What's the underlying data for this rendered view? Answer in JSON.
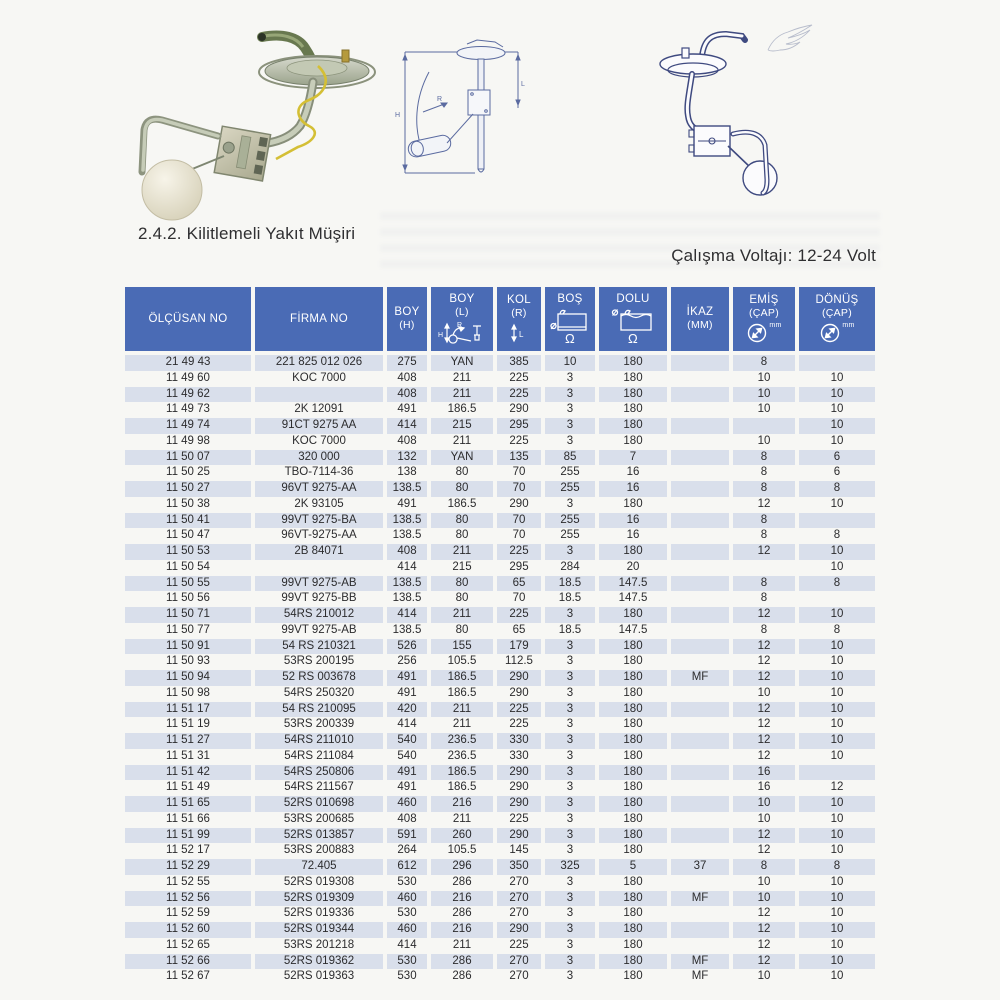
{
  "page": {
    "section_title": "2.4.2. Kilitlemeli Yakıt Müşiri",
    "voltage_note": "Çalışma Voltajı: 12-24 Volt"
  },
  "colors": {
    "header_bg": "#4a6bb5",
    "row_stripe": "#d9dfeb",
    "page_bg": "#f7f7f4",
    "drawing_ink": "#3f4a80"
  },
  "icon_letters": {
    "h": "H",
    "r": "R",
    "l": "L"
  },
  "figures": {
    "left": "locking-fuel-sender-photo",
    "middle": "fuel-sender-dimension-diagram",
    "right": "fuel-sender-line-drawing",
    "diagram_labels": {
      "height": "H",
      "radius": "R",
      "arm": "L"
    }
  },
  "table": {
    "headers": [
      {
        "label": "ÖLÇÜSAN NO"
      },
      {
        "label": "FİRMA NO"
      },
      {
        "label": "BOY",
        "sub": "(H)"
      },
      {
        "label": "BOY",
        "sub": "(L)",
        "icon": "boy-l-dimension-icon"
      },
      {
        "label": "KOL",
        "sub": "(R)",
        "icon": "kol-r-dimension-icon"
      },
      {
        "label": "BOŞ",
        "unit": "Ω",
        "icon": "empty-tank-icon"
      },
      {
        "label": "DOLU",
        "unit": "Ω",
        "icon": "full-tank-icon"
      },
      {
        "label": "İKAZ",
        "sub": "(MM)"
      },
      {
        "label": "EMİŞ",
        "sub": "(ÇAP)",
        "unit": "mm",
        "icon": "diameter-icon"
      },
      {
        "label": "DÖNÜŞ",
        "sub": "(ÇAP)",
        "unit": "mm",
        "icon": "diameter-icon"
      }
    ],
    "rows": [
      [
        "21 49 43",
        "221 825 012 026",
        "275",
        "YAN",
        "385",
        "10",
        "180",
        "",
        "8",
        ""
      ],
      [
        "11 49 60",
        "KOC 7000",
        "408",
        "211",
        "225",
        "3",
        "180",
        "",
        "10",
        "10"
      ],
      [
        "11 49 62",
        "",
        "408",
        "211",
        "225",
        "3",
        "180",
        "",
        "10",
        "10"
      ],
      [
        "11 49 73",
        "2K 12091",
        "491",
        "186.5",
        "290",
        "3",
        "180",
        "",
        "10",
        "10"
      ],
      [
        "11 49 74",
        "91CT 9275 AA",
        "414",
        "215",
        "295",
        "3",
        "180",
        "",
        "",
        "10"
      ],
      [
        "11 49 98",
        "KOC 7000",
        "408",
        "211",
        "225",
        "3",
        "180",
        "",
        "10",
        "10"
      ],
      [
        "11 50 07",
        "320 000",
        "132",
        "YAN",
        "135",
        "85",
        "7",
        "",
        "8",
        "6"
      ],
      [
        "11 50 25",
        "TBO-7114-36",
        "138",
        "80",
        "70",
        "255",
        "16",
        "",
        "8",
        "6"
      ],
      [
        "11 50 27",
        "96VT 9275-AA",
        "138.5",
        "80",
        "70",
        "255",
        "16",
        "",
        "8",
        "8"
      ],
      [
        "11 50 38",
        "2K 93105",
        "491",
        "186.5",
        "290",
        "3",
        "180",
        "",
        "12",
        "10"
      ],
      [
        "11 50 41",
        "99VT 9275-BA",
        "138.5",
        "80",
        "70",
        "255",
        "16",
        "",
        "8",
        ""
      ],
      [
        "11 50 47",
        "96VT-9275-AA",
        "138.5",
        "80",
        "70",
        "255",
        "16",
        "",
        "8",
        "8"
      ],
      [
        "11 50 53",
        "2B 84071",
        "408",
        "211",
        "225",
        "3",
        "180",
        "",
        "12",
        "10"
      ],
      [
        "11 50 54",
        "",
        "414",
        "215",
        "295",
        "284",
        "20",
        "",
        "",
        "10"
      ],
      [
        "11 50 55",
        "99VT 9275-AB",
        "138.5",
        "80",
        "65",
        "18.5",
        "147.5",
        "",
        "8",
        "8"
      ],
      [
        "11 50 56",
        "99VT 9275-BB",
        "138.5",
        "80",
        "70",
        "18.5",
        "147.5",
        "",
        "8",
        ""
      ],
      [
        "11 50 71",
        "54RS 210012",
        "414",
        "211",
        "225",
        "3",
        "180",
        "",
        "12",
        "10"
      ],
      [
        "11 50 77",
        "99VT 9275-AB",
        "138.5",
        "80",
        "65",
        "18.5",
        "147.5",
        "",
        "8",
        "8"
      ],
      [
        "11 50 91",
        "54 RS 210321",
        "526",
        "155",
        "179",
        "3",
        "180",
        "",
        "12",
        "10"
      ],
      [
        "11 50 93",
        "53RS 200195",
        "256",
        "105.5",
        "112.5",
        "3",
        "180",
        "",
        "12",
        "10"
      ],
      [
        "11 50 94",
        "52 RS 003678",
        "491",
        "186.5",
        "290",
        "3",
        "180",
        "MF",
        "12",
        "10"
      ],
      [
        "11 50 98",
        "54RS 250320",
        "491",
        "186.5",
        "290",
        "3",
        "180",
        "",
        "10",
        "10"
      ],
      [
        "11 51 17",
        "54 RS 210095",
        "420",
        "211",
        "225",
        "3",
        "180",
        "",
        "12",
        "10"
      ],
      [
        "11 51 19",
        "53RS 200339",
        "414",
        "211",
        "225",
        "3",
        "180",
        "",
        "12",
        "10"
      ],
      [
        "11 51 27",
        "54RS 211010",
        "540",
        "236.5",
        "330",
        "3",
        "180",
        "",
        "12",
        "10"
      ],
      [
        "11 51 31",
        "54RS 211084",
        "540",
        "236.5",
        "330",
        "3",
        "180",
        "",
        "12",
        "10"
      ],
      [
        "11 51 42",
        "54RS 250806",
        "491",
        "186.5",
        "290",
        "3",
        "180",
        "",
        "16",
        ""
      ],
      [
        "11 51 49",
        "54RS 211567",
        "491",
        "186.5",
        "290",
        "3",
        "180",
        "",
        "16",
        "12"
      ],
      [
        "11 51 65",
        "52RS 010698",
        "460",
        "216",
        "290",
        "3",
        "180",
        "",
        "10",
        "10"
      ],
      [
        "11 51 66",
        "53RS 200685",
        "408",
        "211",
        "225",
        "3",
        "180",
        "",
        "10",
        "10"
      ],
      [
        "11 51 99",
        "52RS 013857",
        "591",
        "260",
        "290",
        "3",
        "180",
        "",
        "12",
        "10"
      ],
      [
        "11 52 17",
        "53RS 200883",
        "264",
        "105.5",
        "145",
        "3",
        "180",
        "",
        "12",
        "10"
      ],
      [
        "11 52 29",
        "72.405",
        "612",
        "296",
        "350",
        "325",
        "5",
        "37",
        "8",
        "8"
      ],
      [
        "11 52 55",
        "52RS 019308",
        "530",
        "286",
        "270",
        "3",
        "180",
        "",
        "10",
        "10"
      ],
      [
        "11 52 56",
        "52RS 019309",
        "460",
        "216",
        "270",
        "3",
        "180",
        "MF",
        "10",
        "10"
      ],
      [
        "11 52 59",
        "52RS 019336",
        "530",
        "286",
        "270",
        "3",
        "180",
        "",
        "12",
        "10"
      ],
      [
        "11 52 60",
        "52RS 019344",
        "460",
        "216",
        "290",
        "3",
        "180",
        "",
        "12",
        "10"
      ],
      [
        "11 52 65",
        "53RS 201218",
        "414",
        "211",
        "225",
        "3",
        "180",
        "",
        "12",
        "10"
      ],
      [
        "11 52 66",
        "52RS 019362",
        "530",
        "286",
        "270",
        "3",
        "180",
        "MF",
        "12",
        "10"
      ],
      [
        "11 52 67",
        "52RS 019363",
        "530",
        "286",
        "270",
        "3",
        "180",
        "MF",
        "10",
        "10"
      ]
    ]
  }
}
